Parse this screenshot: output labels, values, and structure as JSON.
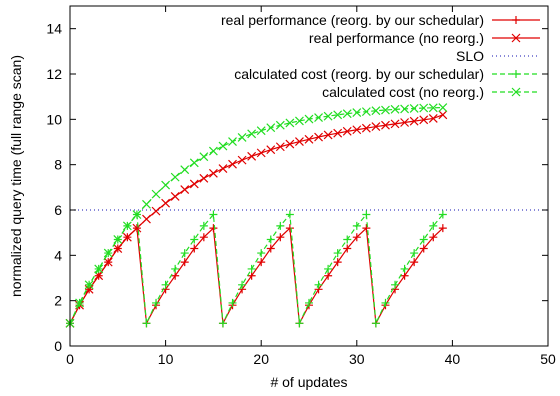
{
  "chart_data": {
    "type": "line",
    "xlabel": "# of updates",
    "ylabel": "normalized query time (full range scan)",
    "xlim": [
      0,
      50
    ],
    "ylim": [
      0,
      15
    ],
    "xticks": [
      0,
      10,
      20,
      30,
      40,
      50
    ],
    "yticks": [
      0,
      2,
      4,
      6,
      8,
      10,
      12,
      14
    ],
    "grid": false,
    "legend_position": "top-right",
    "series": [
      {
        "name": "real performance (reorg. by our schedular)",
        "color": "#e00000",
        "marker": "plus",
        "dash": "solid",
        "x": [
          0,
          1,
          2,
          3,
          4,
          5,
          6,
          7,
          8,
          9,
          10,
          11,
          12,
          13,
          14,
          15,
          16,
          17,
          18,
          19,
          20,
          21,
          22,
          23,
          24,
          25,
          26,
          27,
          28,
          29,
          30,
          31,
          32,
          33,
          34,
          35,
          36,
          37,
          38,
          39
        ],
        "y": [
          1,
          1.8,
          2.5,
          3.1,
          3.7,
          4.3,
          4.8,
          5.2,
          1,
          1.8,
          2.5,
          3.1,
          3.7,
          4.3,
          4.8,
          5.2,
          1,
          1.8,
          2.5,
          3.1,
          3.7,
          4.3,
          4.8,
          5.2,
          1,
          1.8,
          2.5,
          3.1,
          3.7,
          4.3,
          4.8,
          5.2,
          1,
          1.8,
          2.5,
          3.1,
          3.7,
          4.3,
          4.8,
          5.2
        ]
      },
      {
        "name": "real performance (no reorg.)",
        "color": "#e00000",
        "marker": "x",
        "dash": "solid",
        "x": [
          0,
          1,
          2,
          3,
          4,
          5,
          6,
          7,
          8,
          9,
          10,
          11,
          12,
          13,
          14,
          15,
          16,
          17,
          18,
          19,
          20,
          21,
          22,
          23,
          24,
          25,
          26,
          27,
          28,
          29,
          30,
          31,
          32,
          33,
          34,
          35,
          36,
          37,
          38,
          39
        ],
        "y": [
          1,
          1.8,
          2.5,
          3.1,
          3.7,
          4.3,
          4.8,
          5.2,
          5.6,
          5.95,
          6.3,
          6.6,
          6.9,
          7.15,
          7.4,
          7.62,
          7.83,
          8.02,
          8.2,
          8.37,
          8.52,
          8.66,
          8.79,
          8.91,
          9.02,
          9.12,
          9.22,
          9.31,
          9.39,
          9.47,
          9.54,
          9.61,
          9.68,
          9.74,
          9.8,
          9.86,
          9.92,
          9.98,
          10.04,
          10.2
        ]
      },
      {
        "name": "SLO",
        "color": "#4040c0",
        "marker": "none",
        "dash": "dotted",
        "x": [
          0,
          50
        ],
        "y": [
          6,
          6
        ]
      },
      {
        "name": "calculated cost (reorg. by our schedular)",
        "color": "#22dd22",
        "marker": "plus",
        "dash": "dashed",
        "x": [
          0,
          1,
          2,
          3,
          4,
          5,
          6,
          7,
          8,
          9,
          10,
          11,
          12,
          13,
          14,
          15,
          16,
          17,
          18,
          19,
          20,
          21,
          22,
          23,
          24,
          25,
          26,
          27,
          28,
          29,
          30,
          31,
          32,
          33,
          34,
          35,
          36,
          37,
          38,
          39
        ],
        "y": [
          1,
          1.9,
          2.7,
          3.4,
          4.1,
          4.7,
          5.3,
          5.8,
          1,
          1.9,
          2.7,
          3.4,
          4.1,
          4.7,
          5.3,
          5.8,
          1,
          1.9,
          2.7,
          3.4,
          4.1,
          4.7,
          5.3,
          5.8,
          1,
          1.9,
          2.7,
          3.4,
          4.1,
          4.7,
          5.3,
          5.8,
          1,
          1.9,
          2.7,
          3.4,
          4.1,
          4.7,
          5.3,
          5.8
        ]
      },
      {
        "name": "calculated cost (no reorg.)",
        "color": "#22dd22",
        "marker": "x",
        "dash": "dashed",
        "x": [
          0,
          1,
          2,
          3,
          4,
          5,
          6,
          7,
          8,
          9,
          10,
          11,
          12,
          13,
          14,
          15,
          16,
          17,
          18,
          19,
          20,
          21,
          22,
          23,
          24,
          25,
          26,
          27,
          28,
          29,
          30,
          31,
          32,
          33,
          34,
          35,
          36,
          37,
          38,
          39
        ],
        "y": [
          1,
          1.9,
          2.7,
          3.4,
          4.1,
          4.7,
          5.3,
          5.8,
          6.25,
          6.7,
          7.1,
          7.45,
          7.78,
          8.08,
          8.35,
          8.6,
          8.82,
          9.02,
          9.2,
          9.36,
          9.5,
          9.63,
          9.74,
          9.84,
          9.93,
          10.01,
          10.08,
          10.14,
          10.2,
          10.25,
          10.3,
          10.34,
          10.38,
          10.41,
          10.44,
          10.46,
          10.48,
          10.5,
          10.51,
          10.52
        ]
      }
    ]
  }
}
